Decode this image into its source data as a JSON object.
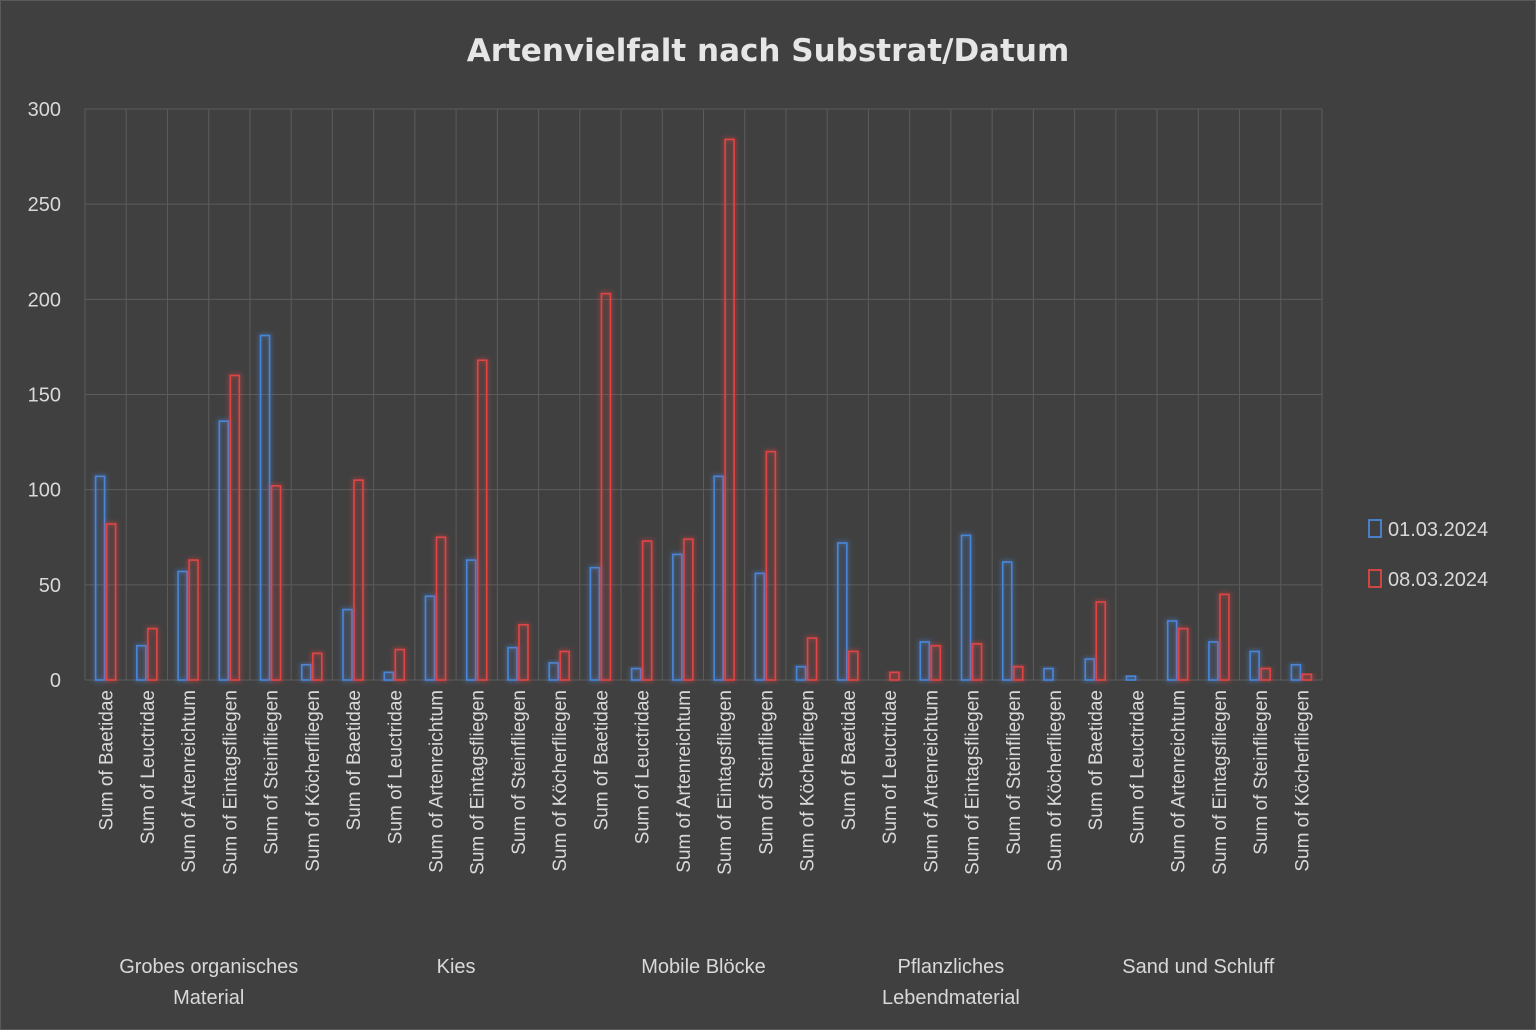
{
  "chart_data": {
    "type": "bar",
    "title": "Artenvielfalt nach Substrat/Datum",
    "xlabel": "",
    "ylabel": "",
    "ylim": [
      0,
      300
    ],
    "yticks": [
      0,
      50,
      100,
      150,
      200,
      250,
      300
    ],
    "grid": true,
    "legend_position": "right",
    "groups": [
      {
        "label_lines": [
          "Grobes organisches",
          "Material"
        ],
        "categories": [
          "Sum of Baetidae",
          "Sum of Leuctridae",
          "Sum of Artenreichtum",
          "Sum of Eintagsfliegen",
          "Sum of Steinfliegen",
          "Sum of Köcherfliegen"
        ]
      },
      {
        "label_lines": [
          "Kies"
        ],
        "categories": [
          "Sum of Baetidae",
          "Sum of Leuctridae",
          "Sum of Artenreichtum",
          "Sum of Eintagsfliegen",
          "Sum of Steinfliegen",
          "Sum of Köcherfliegen"
        ]
      },
      {
        "label_lines": [
          "Mobile Blöcke"
        ],
        "categories": [
          "Sum of Baetidae",
          "Sum of Leuctridae",
          "Sum of Artenreichtum",
          "Sum of Eintagsfliegen",
          "Sum of Steinfliegen",
          "Sum of Köcherfliegen"
        ]
      },
      {
        "label_lines": [
          "Pflanzliches",
          "Lebendmaterial"
        ],
        "categories": [
          "Sum of Baetidae",
          "Sum of Leuctridae",
          "Sum of Artenreichtum",
          "Sum of Eintagsfliegen",
          "Sum of Steinfliegen",
          "Sum of Köcherfliegen"
        ]
      },
      {
        "label_lines": [
          "Sand und Schluff"
        ],
        "categories": [
          "Sum of Baetidae",
          "Sum of Leuctridae",
          "Sum of Artenreichtum",
          "Sum of Eintagsfliegen",
          "Sum of Steinfliegen",
          "Sum of Köcherfliegen"
        ]
      }
    ],
    "series": [
      {
        "name": "01.03.2024",
        "color": "#4a86d8",
        "values": [
          107,
          18,
          57,
          136,
          181,
          8,
          37,
          4,
          44,
          63,
          17,
          9,
          59,
          6,
          66,
          107,
          56,
          7,
          72,
          0,
          20,
          76,
          62,
          6,
          11,
          2,
          31,
          20,
          15,
          8
        ]
      },
      {
        "name": "08.03.2024",
        "color": "#e04545",
        "values": [
          82,
          27,
          63,
          160,
          102,
          14,
          105,
          16,
          75,
          168,
          29,
          15,
          203,
          73,
          74,
          284,
          120,
          22,
          15,
          4,
          18,
          19,
          7,
          0,
          41,
          0,
          27,
          45,
          6,
          3
        ]
      }
    ]
  }
}
